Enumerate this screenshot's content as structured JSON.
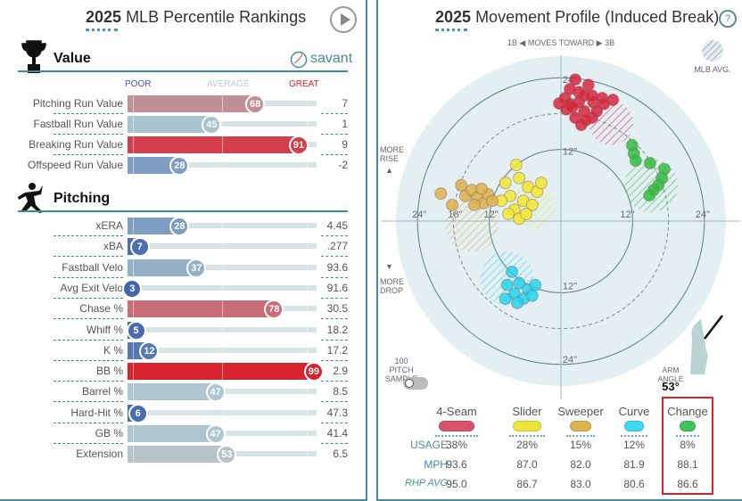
{
  "left": {
    "title_year": "2025",
    "title_rest": "MLB Percentile Rankings",
    "value_section": "Value",
    "pitching_section": "Pitching",
    "brand": "savant",
    "scale": {
      "poor": "POOR",
      "average": "AVERAGE",
      "great": "GREAT"
    },
    "colors": {
      "poor": "#3a5fa8",
      "average": "#b4cdd3",
      "great": "#d8202d"
    },
    "value_rows": [
      {
        "label": "Pitching Run Value",
        "pct": 68,
        "value": "7"
      },
      {
        "label": "Fastball Run Value",
        "pct": 45,
        "value": "1"
      },
      {
        "label": "Breaking Run Value",
        "pct": 91,
        "value": "9"
      },
      {
        "label": "Offspeed Run Value",
        "pct": 28,
        "value": "-2"
      }
    ],
    "pitching_rows": [
      {
        "label": "xERA",
        "pct": 28,
        "value": "4.45"
      },
      {
        "label": "xBA",
        "pct": 7,
        "value": ".277"
      },
      {
        "label": "Fastball Velo",
        "pct": 37,
        "value": "93.6"
      },
      {
        "label": "Avg Exit Velo",
        "pct": 3,
        "value": "91.6"
      },
      {
        "label": "Chase %",
        "pct": 78,
        "value": "30.5"
      },
      {
        "label": "Whiff %",
        "pct": 5,
        "value": "18.2"
      },
      {
        "label": "K %",
        "pct": 12,
        "value": "17.2"
      },
      {
        "label": "BB %",
        "pct": 99,
        "value": "2.9"
      },
      {
        "label": "Barrel %",
        "pct": 47,
        "value": "8.5"
      },
      {
        "label": "Hard-Hit %",
        "pct": 6,
        "value": "47.3"
      },
      {
        "label": "GB %",
        "pct": 47,
        "value": "41.4"
      },
      {
        "label": "Extension",
        "pct": 53,
        "value": "6.5"
      }
    ]
  },
  "right": {
    "title_year": "2025",
    "title_rest": "Movement Profile (Induced Break)",
    "help": "?",
    "direction": "1B ◀  MOVES TOWARD  ▶ 3B",
    "mlb_avg": "MLB AVG.",
    "more_rise": "MORE RISE",
    "more_drop": "MORE DROP",
    "sample": "100 PITCH SAMPLE",
    "arm_angle_label": "ARM ANGLE",
    "arm_angle": "53°",
    "rows": {
      "usage": "USAGE",
      "mph": "MPH",
      "rhp_avg": "RHP AVG"
    },
    "pitches": [
      {
        "name": "4-Seam",
        "color": "#d9546a",
        "usage": "38%",
        "mph": "93.6",
        "rhp_avg": "95.0"
      },
      {
        "name": "Slider",
        "color": "#eee43c",
        "usage": "28%",
        "mph": "87.0",
        "rhp_avg": "86.7"
      },
      {
        "name": "Sweeper",
        "color": "#ddb350",
        "usage": "15%",
        "mph": "82.0",
        "rhp_avg": "83.0"
      },
      {
        "name": "Curve",
        "color": "#3dd9ef",
        "usage": "12%",
        "mph": "81.9",
        "rhp_avg": "80.6"
      },
      {
        "name": "Change",
        "color": "#3fc45a",
        "usage": "8%",
        "mph": "88.1",
        "rhp_avg": "86.6"
      }
    ]
  },
  "chart_data": {
    "type": "scatter",
    "xlabel": "1B ◀ MOVES TOWARD ▶ 3B",
    "ylabel": "MORE RISE / MORE DROP",
    "rings": [
      "12\"",
      "18\"",
      "24\""
    ],
    "xlim": [
      -27,
      27
    ],
    "ylim": [
      -27,
      27
    ],
    "series": [
      {
        "name": "4-Seam",
        "color": "#d7263d",
        "avg": [
          8.4,
          16.4,
          3.7
        ],
        "points": [
          [
            2.4,
            23.7
          ],
          [
            4.6,
            22.8
          ],
          [
            3.0,
            21.6
          ],
          [
            0.7,
            20.6
          ],
          [
            -0.3,
            19.7
          ],
          [
            1.5,
            19.6
          ],
          [
            3.0,
            19.9
          ],
          [
            5.4,
            19.9
          ],
          [
            6.9,
            20.6
          ],
          [
            8.7,
            20.3
          ],
          [
            7.2,
            19.6
          ],
          [
            0.9,
            18.7
          ],
          [
            3.9,
            18.4
          ],
          [
            5.2,
            17.3
          ],
          [
            2.4,
            17.3
          ],
          [
            3.4,
            16.1
          ],
          [
            6.0,
            18.4
          ],
          [
            5.2,
            21.0
          ],
          [
            3.9,
            21.0
          ],
          [
            1.9,
            19.1
          ],
          [
            4.2,
            16.9
          ],
          [
            1.5,
            22.1
          ]
        ]
      },
      {
        "name": "Slider",
        "color": "#f2e62e",
        "avg": [
          -4.5,
          2.4,
          3.7
        ],
        "points": [
          [
            -7.5,
            9.4
          ],
          [
            -9.3,
            6.4
          ],
          [
            -7.0,
            7.2
          ],
          [
            -5.5,
            5.7
          ],
          [
            -8.5,
            4.2
          ],
          [
            -6.3,
            3.4
          ],
          [
            -7.8,
            1.9
          ],
          [
            -4.8,
            2.7
          ],
          [
            -4.0,
            4.9
          ],
          [
            -8.8,
            1.2
          ],
          [
            -7.0,
            0.4
          ],
          [
            -10.0,
            3.4
          ],
          [
            -3.3,
            6.4
          ],
          [
            -5.8,
            1.2
          ]
        ]
      },
      {
        "name": "Sweeper",
        "color": "#ddb04a",
        "avg": [
          -14.9,
          -0.7,
          4.5
        ],
        "points": [
          [
            -20.1,
            4.6
          ],
          [
            -16.7,
            6.0
          ],
          [
            -16.0,
            4.2
          ],
          [
            -14.9,
            5.2
          ],
          [
            -14.0,
            3.9
          ],
          [
            -13.0,
            3.0
          ],
          [
            -12.2,
            4.5
          ],
          [
            -18.2,
            2.7
          ],
          [
            -11.5,
            3.4
          ],
          [
            -14.5,
            2.7
          ],
          [
            -13.3,
            5.4
          ]
        ]
      },
      {
        "name": "Curve",
        "color": "#25d3ee",
        "avg": [
          -9.0,
          -9.6,
          4.5
        ],
        "points": [
          [
            -8.2,
            -8.5
          ],
          [
            -7.0,
            -10.4
          ],
          [
            -5.5,
            -11.5
          ],
          [
            -7.8,
            -12.2
          ],
          [
            -9.3,
            -13.0
          ],
          [
            -6.3,
            -13.0
          ],
          [
            -4.8,
            -12.5
          ],
          [
            -7.3,
            -13.7
          ],
          [
            -9.0,
            -10.7
          ],
          [
            -4.3,
            -10.7
          ]
        ]
      },
      {
        "name": "Change",
        "color": "#2fbf40",
        "avg": [
          15.1,
          6.0,
          4.5
        ],
        "points": [
          [
            11.9,
            12.7
          ],
          [
            12.2,
            11.3
          ],
          [
            12.5,
            10.1
          ],
          [
            14.9,
            9.7
          ],
          [
            17.3,
            8.7
          ],
          [
            16.9,
            7.2
          ],
          [
            16.3,
            6.0
          ],
          [
            15.5,
            5.2
          ],
          [
            14.8,
            4.3
          ]
        ]
      }
    ]
  }
}
